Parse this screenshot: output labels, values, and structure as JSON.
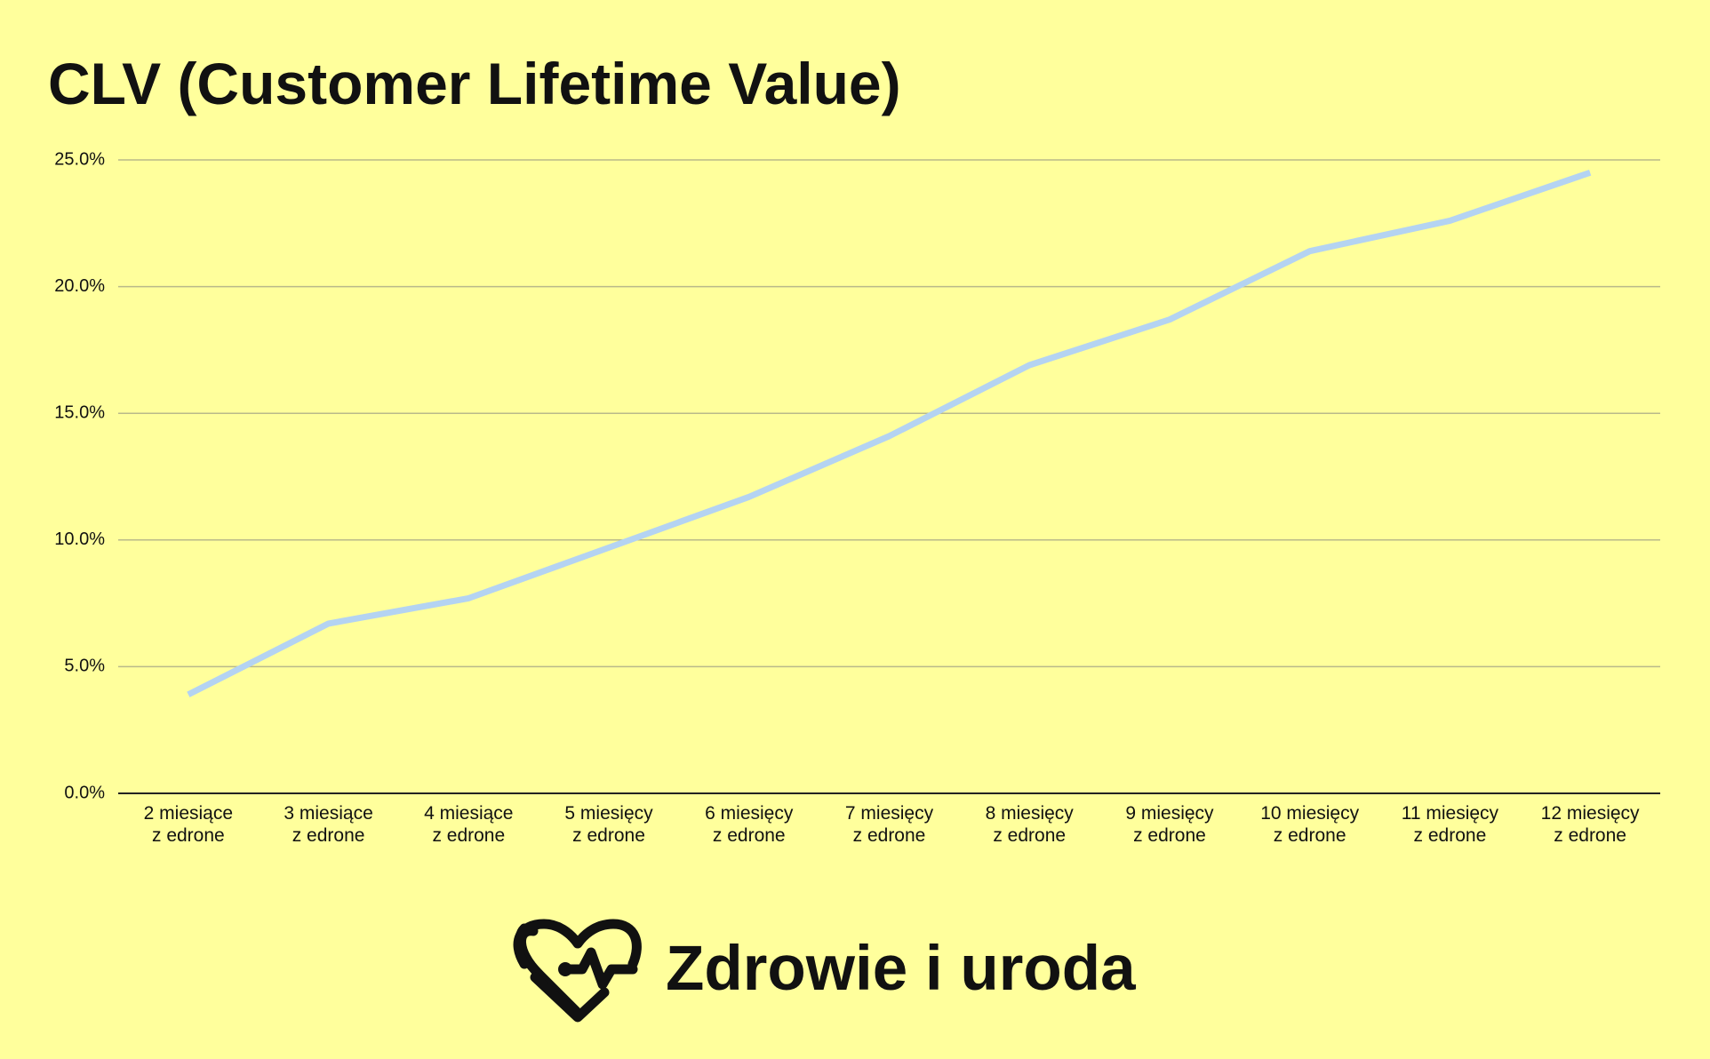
{
  "chart_data": {
    "type": "line",
    "title": "CLV (Customer Lifetime Value)",
    "categories": [
      "2 miesiące\nz edrone",
      "3 miesiące\nz edrone",
      "4 miesiące\nz edrone",
      "5 miesięcy\nz edrone",
      "6 miesięcy\nz edrone",
      "7 miesięcy\nz edrone",
      "8 miesięcy\nz edrone",
      "9 miesięcy\nz edrone",
      "10 miesięcy\nz edrone",
      "11 miesięcy\nz edrone",
      "12 miesięcy\nz edrone"
    ],
    "values": [
      3.9,
      6.7,
      7.7,
      9.7,
      11.7,
      14.1,
      16.9,
      18.7,
      21.4,
      22.6,
      24.5
    ],
    "color": "#b4d3f2",
    "ylim": [
      0,
      25
    ],
    "yticks": [
      {
        "value": 0,
        "label": "0.0%"
      },
      {
        "value": 5,
        "label": "5.0%"
      },
      {
        "value": 10,
        "label": "10.0%"
      },
      {
        "value": 15,
        "label": "15.0%"
      },
      {
        "value": 20,
        "label": "20.0%"
      },
      {
        "value": 25,
        "label": "25.0%"
      }
    ],
    "grid": true
  },
  "brand": "Zdrowie i uroda"
}
